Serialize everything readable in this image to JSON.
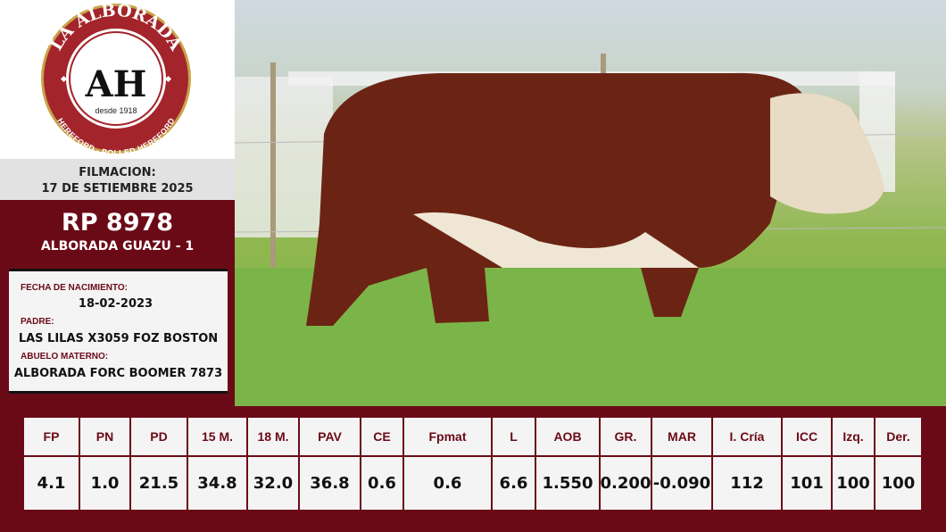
{
  "logo": {
    "top_text": "LA ALBORADA",
    "monogram": "AH",
    "since": "desde 1918",
    "bottom_text": "HEREFORD - POLLED HEREFORD"
  },
  "filming": {
    "label": "FILMACION:",
    "date": "17 DE SETIEMBRE 2025"
  },
  "animal": {
    "rp": "RP 8978",
    "name": "ALBORADA GUAZU - 1"
  },
  "info": {
    "birth_label": "FECHA DE NACIMIENTO:",
    "birth_date": "18-02-2023",
    "sire_label": "PADRE:",
    "sire": "LAS LILAS X3059 FOZ BOSTON",
    "mgs_label": "ABUELO MATERNO:",
    "mgs": "ALBORADA FORC BOOMER 7873"
  },
  "colors": {
    "brand": "#6b0a17",
    "panel": "#f4f4f4"
  },
  "table": {
    "headers": [
      "FP",
      "PN",
      "PD",
      "15 M.",
      "18 M.",
      "PAV",
      "CE",
      "Fpmat",
      "L",
      "AOB",
      "GR.",
      "MAR",
      "I. Cría",
      "ICC",
      "Izq.",
      "Der."
    ],
    "values": [
      "4.1",
      "1.0",
      "21.5",
      "34.8",
      "32.0",
      "36.8",
      "0.6",
      "0.6",
      "6.6",
      "1.550",
      "0.200",
      "-0.090",
      "112",
      "101",
      "100",
      "100"
    ]
  }
}
